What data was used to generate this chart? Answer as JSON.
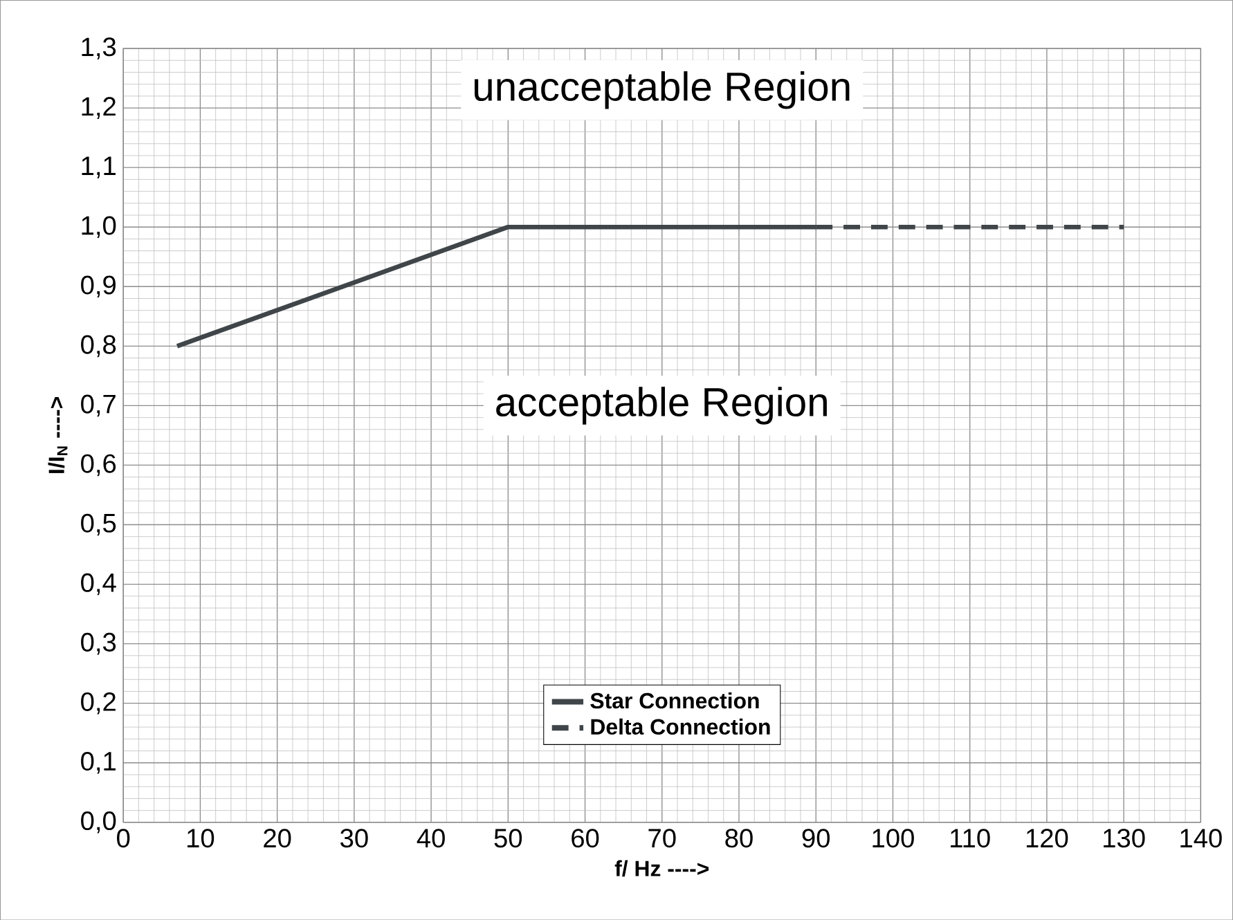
{
  "chart_data": {
    "type": "line",
    "xlabel": "f/ Hz ---->",
    "ylabel": "I/I$_{N}$ ---->",
    "series": [
      {
        "name": "Star Connection",
        "color": "#3f4548",
        "line_style": "solid",
        "x": [
          7,
          50,
          90
        ],
        "values": [
          0.8,
          1.0,
          1.0
        ]
      },
      {
        "name": "Delta Connection",
        "color": "#3f4548",
        "line_style": "dashed",
        "x": [
          90,
          130
        ],
        "values": [
          1.0,
          1.0
        ]
      }
    ],
    "xlim": [
      0,
      140
    ],
    "xticks": [
      0,
      10,
      20,
      30,
      40,
      50,
      60,
      70,
      80,
      90,
      100,
      110,
      120,
      130,
      140
    ],
    "ylim": [
      0,
      1.3
    ],
    "yticks": [
      {
        "value": 0,
        "label": "0,0"
      },
      {
        "value": 0.1,
        "label": "0,1"
      },
      {
        "value": 0.2,
        "label": "0,2"
      },
      {
        "value": 0.3,
        "label": "0,3"
      },
      {
        "value": 0.4,
        "label": "0,4"
      },
      {
        "value": 0.5,
        "label": "0,5"
      },
      {
        "value": 0.6,
        "label": "0,6"
      },
      {
        "value": 0.7,
        "label": "0,7"
      },
      {
        "value": 0.8,
        "label": "0,8"
      },
      {
        "value": 0.9,
        "label": "0,9"
      },
      {
        "value": 1.0,
        "label": "1,0"
      },
      {
        "value": 1.1,
        "label": "1,1"
      },
      {
        "value": 1.2,
        "label": "1,2"
      },
      {
        "value": 1.3,
        "label": "1,3"
      }
    ],
    "grid": true,
    "legend": "bottom",
    "marker": "none",
    "annotations": [
      "unacceptable Region",
      "acceptable Region"
    ]
  }
}
